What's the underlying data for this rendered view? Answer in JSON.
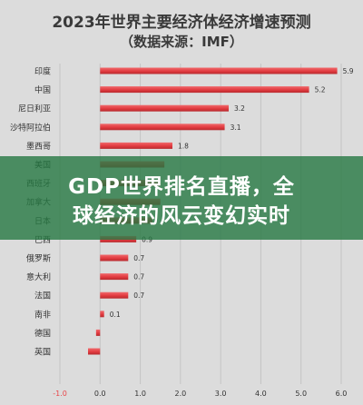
{
  "chart_data": {
    "type": "bar",
    "orientation": "horizontal",
    "title": "2023年世界主要经济体经济增速预测",
    "subtitle": "（数据来源：IMF）",
    "categories": [
      "印度",
      "中国",
      "尼日利亚",
      "沙特阿拉伯",
      "墨西哥",
      "美国",
      "西班牙",
      "加拿大",
      "日本",
      "巴西",
      "俄罗斯",
      "意大利",
      "法国",
      "南非",
      "德国",
      "英国"
    ],
    "values": [
      5.9,
      5.2,
      3.2,
      3.1,
      1.8,
      1.6,
      1.5,
      1.5,
      1.3,
      0.9,
      0.7,
      0.7,
      0.7,
      0.1,
      -0.1,
      -0.3
    ],
    "value_labels": [
      "5.9",
      "5.2",
      "3.2",
      "3.1",
      "1.8",
      "",
      "",
      "",
      "",
      "0.9",
      "0.7",
      "0.7",
      "0.7",
      "0.1",
      "",
      ""
    ],
    "xlim": [
      -1.0,
      6.0
    ],
    "xticks": [
      "-1.0",
      "0.0",
      "1.0",
      "2.0",
      "3.0",
      "4.0",
      "5.0",
      "6.0"
    ],
    "grid": true,
    "colors": {
      "bar": "#e8454a",
      "bar_dark": "#b72a2e",
      "grid": "#c4c4c4",
      "text": "#333333",
      "background": "#dcdcdc"
    }
  },
  "banner": {
    "line1": "GDP世界排名直播，全",
    "line2": "球经济的风云变幻实时"
  }
}
